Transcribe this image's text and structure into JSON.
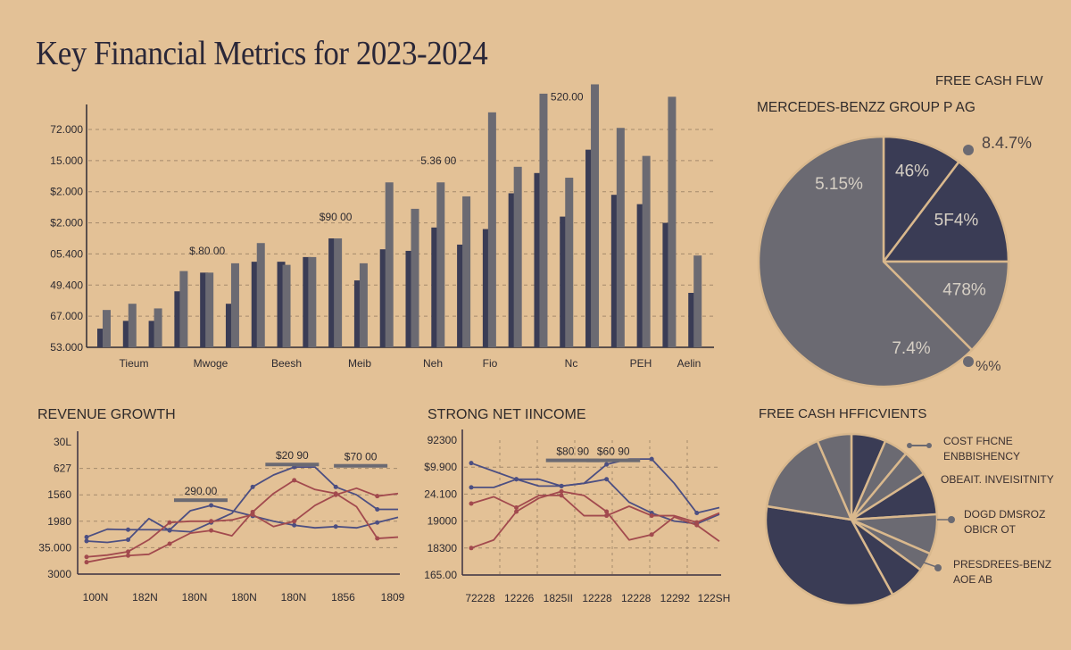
{
  "header": {
    "title": "Key Financial Metrics for 2023-2024",
    "top_right_label": "FREE CASH FLW"
  },
  "colors": {
    "background": "#e3c196",
    "navy": "#3a3c55",
    "gray": "#6b6a72",
    "red": "#a24a4e",
    "blue": "#4c4f82",
    "text": "#2d2a30",
    "separator": "#e3c196"
  },
  "chart_data": [
    {
      "id": "bar",
      "type": "bar",
      "title": "",
      "ytick_labels": [
        "53.000",
        "67.000",
        "49.400",
        "05.400",
        "$2.000",
        "$2.000",
        "15.000",
        "72.000"
      ],
      "ylim": [
        0,
        7
      ],
      "xtick_labels": [
        "Tieum",
        "Mwoge",
        "Beesh",
        "Meib",
        "Neh",
        "Fio",
        "Nc",
        "PEH",
        "Aelin"
      ],
      "grid": true,
      "series": [
        {
          "name": "series-a",
          "color": "#3a3c55",
          "values": [
            0.6,
            0.85,
            0.85,
            1.8,
            2.4,
            1.4,
            2.75,
            2.75,
            2.9,
            3.5,
            2.15,
            3.15,
            3.1,
            3.85,
            3.3,
            3.8,
            4.95,
            5.6,
            4.2,
            6.35,
            4.9,
            4.6,
            4.0,
            1.75
          ]
        },
        {
          "name": "series-b",
          "color": "#6b6a72",
          "values": [
            1.2,
            1.4,
            1.25,
            2.45,
            2.4,
            2.7,
            3.35,
            2.65,
            2.9,
            3.5,
            2.7,
            5.3,
            4.45,
            5.3,
            4.85,
            7.55,
            5.8,
            8.15,
            5.45,
            8.45,
            7.05,
            6.15,
            8.05,
            2.95
          ]
        }
      ],
      "annotations": [
        {
          "text": "$.80 00",
          "x": 4,
          "y": 2.75
        },
        {
          "text": "$90 00",
          "x": 9,
          "y": 3.85
        },
        {
          "text": "5.36 00",
          "x": 13,
          "y": 5.65
        },
        {
          "text": "520.00",
          "x": 18,
          "y": 7.7
        }
      ]
    },
    {
      "id": "pie1",
      "type": "pie",
      "title": "MERCEDES-BENZZ GROUP P AG",
      "slices": [
        {
          "label": "46%",
          "value": 10.3,
          "color": "#3a3c55"
        },
        {
          "label": "5F4%",
          "value": 14.7,
          "color": "#3a3c55"
        },
        {
          "label": "478%",
          "value": 12.5,
          "color": "#6b6a72"
        },
        {
          "label": "5.15%",
          "value": 62.5,
          "color": "#6b6a72"
        }
      ],
      "extra_labels": [
        {
          "text": "7.4%",
          "slice": 3
        },
        {
          "text": "8.4.7%",
          "callout": "top-right"
        },
        {
          "text": "%%",
          "callout": "bottom-right"
        }
      ]
    },
    {
      "id": "line1",
      "type": "line",
      "title": "REVENUE GROWTH",
      "ytick_labels": [
        "3000",
        "35.000",
        "1980",
        "1560",
        "627",
        "30L"
      ],
      "ylim": [
        0,
        5
      ],
      "xtick_labels": [
        "100N",
        "182N",
        "180N",
        "180N",
        "180N",
        "1856",
        "1809"
      ],
      "xlim": [
        0,
        16
      ],
      "grid": true,
      "series": [
        {
          "name": "blue-1",
          "color": "#4c4f82",
          "y": [
            1.4,
            1.7,
            1.68,
            1.68,
            1.67,
            2.4,
            2.6,
            2.4,
            2.2,
            2.0,
            1.85,
            1.75,
            1.8,
            1.75,
            1.95,
            2.15
          ]
        },
        {
          "name": "blue-2",
          "color": "#4c4f82",
          "y": [
            1.25,
            1.2,
            1.3,
            2.1,
            1.65,
            1.6,
            1.95,
            2.3,
            3.3,
            3.75,
            4.05,
            4.05,
            3.3,
            3.0,
            2.45,
            2.45
          ]
        },
        {
          "name": "red-1",
          "color": "#a24a4e",
          "y": [
            0.45,
            0.6,
            0.7,
            0.75,
            1.15,
            1.55,
            1.65,
            1.45,
            2.35,
            3.05,
            3.55,
            3.2,
            3.05,
            2.55,
            1.35,
            1.4
          ]
        },
        {
          "name": "red-2",
          "color": "#a24a4e",
          "y": [
            0.65,
            0.72,
            0.85,
            1.3,
            1.95,
            2.0,
            2.0,
            2.05,
            2.25,
            1.8,
            2.0,
            2.6,
            3.0,
            3.25,
            2.95,
            3.05
          ]
        }
      ],
      "annotations": [
        {
          "text": "290.00",
          "x": 5.5,
          "y": 3.0
        },
        {
          "text": "$20 90",
          "x": 9.9,
          "y": 4.35
        },
        {
          "text": "$70 00",
          "x": 13.2,
          "y": 4.3
        }
      ]
    },
    {
      "id": "line2",
      "type": "line",
      "title": "STRONG NET IINCOME",
      "ytick_labels": [
        "165.00",
        "18300",
        "19000",
        "24.100",
        "$9.900",
        "92300"
      ],
      "ylim": [
        0,
        5
      ],
      "xtick_labels": [
        "72228",
        "12226",
        "1825II",
        "12228",
        "12228",
        "12292",
        "122SH"
      ],
      "xlim": [
        0,
        12
      ],
      "grid": true,
      "series": [
        {
          "name": "blue-1",
          "color": "#4c4f82",
          "y": [
            4.15,
            3.85,
            3.55,
            3.55,
            3.3,
            3.4,
            3.55,
            2.7,
            2.3,
            2.0,
            1.9,
            2.25
          ]
        },
        {
          "name": "blue-2",
          "color": "#4c4f82",
          "y": [
            3.25,
            3.25,
            3.55,
            3.3,
            3.3,
            3.4,
            4.1,
            4.3,
            4.3,
            3.4,
            2.3,
            2.5
          ]
        },
        {
          "name": "red-1",
          "color": "#a24a4e",
          "y": [
            1.0,
            1.3,
            2.35,
            2.85,
            3.1,
            2.95,
            2.35,
            1.3,
            1.5,
            2.15,
            1.85,
            1.25
          ]
        },
        {
          "name": "red-2",
          "color": "#a24a4e",
          "y": [
            2.65,
            2.9,
            2.5,
            2.95,
            2.95,
            2.2,
            2.2,
            2.55,
            2.2,
            2.2,
            1.95,
            2.3
          ]
        }
      ],
      "annotations": [
        {
          "text": "$80 90",
          "x": 4.5,
          "y": 4.45
        },
        {
          "text": "$60 90",
          "x": 6.3,
          "y": 4.45
        }
      ]
    },
    {
      "id": "pie2",
      "type": "pie",
      "title": "FREE CASH HFFICVIENTS",
      "slices": [
        {
          "value": 6.5,
          "color": "#3a3c55"
        },
        {
          "value": 4.5,
          "color": "#6b6a72"
        },
        {
          "value": 5.0,
          "color": "#6b6a72"
        },
        {
          "value": 8.0,
          "color": "#3a3c55"
        },
        {
          "value": 7.5,
          "color": "#6b6a72"
        },
        {
          "value": 3.5,
          "color": "#6b6a72"
        },
        {
          "value": 7.0,
          "color": "#3a3c55"
        },
        {
          "value": 35.5,
          "color": "#3a3c55"
        },
        {
          "value": 16.0,
          "color": "#6b6a72"
        },
        {
          "value": 6.5,
          "color": "#6b6a72"
        }
      ],
      "legend": [
        {
          "line1": "COST FHCNE",
          "line2": "ENBBISHENCY"
        },
        {
          "line1": "OBEAIT. INVEISITNITY",
          "line2": ""
        },
        {
          "line1": "DOGD DMSROZ",
          "line2": "OBICR OT"
        },
        {
          "line1": "PRESDREES-BENZ",
          "line2": "AOE AB"
        }
      ]
    }
  ]
}
